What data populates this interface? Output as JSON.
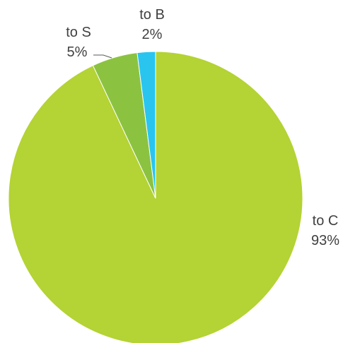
{
  "chart_data": {
    "type": "pie",
    "start_angle_deg": 0,
    "direction": "clockwise",
    "slices": [
      {
        "label": "to C",
        "value_label": "93%",
        "value": 93,
        "color": "#b4d334"
      },
      {
        "label": "to S",
        "value_label": "5%",
        "value": 5,
        "color": "#8bc341"
      },
      {
        "label": "to B",
        "value_label": "2%",
        "value": 2,
        "color": "#29c5ef"
      }
    ],
    "legend": "none",
    "label_style": "outside with category name and percentage",
    "label_color": "#404040"
  }
}
